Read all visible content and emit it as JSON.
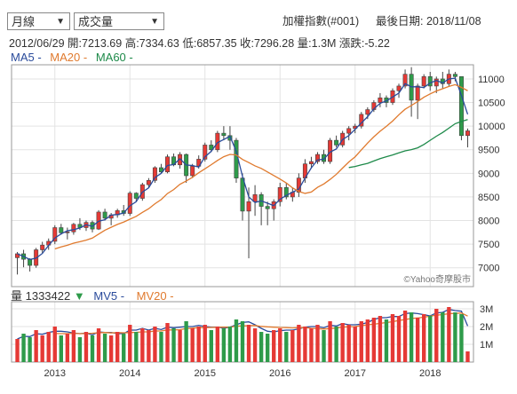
{
  "controls": {
    "period": "月線",
    "indicator": "成交量"
  },
  "header": {
    "index_name": "加權指數(#001)",
    "last_date_label": "最後日期: 2018/11/08",
    "date": "2012/06/29",
    "open": "開:7213.69",
    "high": "高:7334.63",
    "low": "低:6857.35",
    "close": "收:7296.28",
    "volume": "量:1.3M",
    "change": "漲跌:-5.22"
  },
  "ma_legend": [
    {
      "label": "MA5 -",
      "color": "#2a4b9b"
    },
    {
      "label": "MA20 -",
      "color": "#e07a2e"
    },
    {
      "label": "MA60 -",
      "color": "#1e8a4a"
    }
  ],
  "vol_legend": {
    "label": "量 1333422",
    "arrow": "▼",
    "mv5": "MV5 -",
    "mv20": "MV20 -"
  },
  "watermark": "©Yahoo奇摩股市",
  "colors": {
    "up": "#e53935",
    "down": "#2e9b4a",
    "ma5": "#2a4b9b",
    "ma20": "#e07a2e",
    "ma60": "#1e8a4a"
  },
  "chart_data": {
    "type": "candlestick",
    "price_axis": {
      "ticks": [
        7000,
        7500,
        8000,
        8500,
        9000,
        9500,
        10000,
        10500,
        11000
      ],
      "range": [
        6600,
        11300
      ]
    },
    "volume_axis": {
      "ticks": [
        "3M",
        "2M",
        "1M"
      ],
      "tick_values": [
        3,
        2,
        1
      ],
      "range": [
        0,
        3.4
      ]
    },
    "x_axis": {
      "labels": [
        "2013",
        "2014",
        "2015",
        "2016",
        "2017",
        "2018"
      ],
      "label_index": [
        6,
        18,
        30,
        42,
        54,
        66
      ]
    },
    "candles": [
      [
        7213,
        7334,
        6857,
        7296
      ],
      [
        7296,
        7380,
        7010,
        7180
      ],
      [
        7180,
        7200,
        6920,
        7050
      ],
      [
        7050,
        7420,
        7000,
        7380
      ],
      [
        7380,
        7550,
        7300,
        7480
      ],
      [
        7480,
        7620,
        7380,
        7560
      ],
      [
        7560,
        7900,
        7500,
        7850
      ],
      [
        7850,
        7930,
        7700,
        7740
      ],
      [
        7740,
        7850,
        7600,
        7760
      ],
      [
        7760,
        7950,
        7700,
        7920
      ],
      [
        7920,
        8050,
        7800,
        7850
      ],
      [
        7850,
        8000,
        7780,
        7960
      ],
      [
        7960,
        8000,
        7750,
        7820
      ],
      [
        7820,
        8220,
        7800,
        8180
      ],
      [
        8180,
        8250,
        8000,
        8050
      ],
      [
        8050,
        8160,
        7900,
        8120
      ],
      [
        8120,
        8250,
        8060,
        8210
      ],
      [
        8210,
        8330,
        8100,
        8150
      ],
      [
        8150,
        8620,
        8100,
        8580
      ],
      [
        8580,
        8600,
        8400,
        8470
      ],
      [
        8470,
        8800,
        8420,
        8760
      ],
      [
        8760,
        8900,
        8700,
        8850
      ],
      [
        8850,
        9150,
        8800,
        9120
      ],
      [
        9120,
        9200,
        9000,
        9030
      ],
      [
        9030,
        9400,
        9000,
        9350
      ],
      [
        9350,
        9420,
        9150,
        9180
      ],
      [
        9180,
        9450,
        9100,
        9400
      ],
      [
        9400,
        9420,
        8800,
        8950
      ],
      [
        8950,
        9200,
        8900,
        9150
      ],
      [
        9150,
        9380,
        9100,
        9300
      ],
      [
        9300,
        9650,
        9250,
        9600
      ],
      [
        9600,
        9700,
        9450,
        9500
      ],
      [
        9500,
        9900,
        9450,
        9850
      ],
      [
        9850,
        10000,
        9700,
        9800
      ],
      [
        9800,
        10000,
        9500,
        9700
      ],
      [
        9700,
        9750,
        8800,
        8900
      ],
      [
        8900,
        9000,
        8000,
        8200
      ],
      [
        8200,
        8700,
        7200,
        8400
      ],
      [
        8400,
        8750,
        8100,
        8550
      ],
      [
        8550,
        8600,
        7900,
        8300
      ],
      [
        8300,
        8400,
        7900,
        8250
      ],
      [
        8250,
        8450,
        8000,
        8400
      ],
      [
        8400,
        8800,
        8300,
        8700
      ],
      [
        8700,
        8800,
        8450,
        8500
      ],
      [
        8500,
        8700,
        8400,
        8600
      ],
      [
        8600,
        9000,
        8500,
        8900
      ],
      [
        8900,
        9300,
        8800,
        9200
      ],
      [
        9200,
        9350,
        9100,
        9250
      ],
      [
        9250,
        9450,
        9200,
        9400
      ],
      [
        9400,
        9500,
        9200,
        9250
      ],
      [
        9250,
        9750,
        9200,
        9700
      ],
      [
        9700,
        9800,
        9550,
        9600
      ],
      [
        9600,
        9900,
        9550,
        9850
      ],
      [
        9850,
        10000,
        9700,
        9950
      ],
      [
        9950,
        10050,
        9850,
        10000
      ],
      [
        10000,
        10300,
        9950,
        10250
      ],
      [
        10250,
        10400,
        10150,
        10350
      ],
      [
        10350,
        10550,
        10300,
        10500
      ],
      [
        10500,
        10700,
        10400,
        10600
      ],
      [
        10600,
        10650,
        10400,
        10500
      ],
      [
        10500,
        10800,
        10450,
        10750
      ],
      [
        10750,
        10900,
        10600,
        10850
      ],
      [
        10850,
        11200,
        10800,
        11100
      ],
      [
        11100,
        11250,
        10200,
        10550
      ],
      [
        10550,
        10900,
        10150,
        10850
      ],
      [
        10850,
        11100,
        10800,
        11050
      ],
      [
        11050,
        11150,
        10750,
        10850
      ],
      [
        10850,
        11050,
        10700,
        11000
      ],
      [
        11000,
        11150,
        10800,
        10900
      ],
      [
        10900,
        11200,
        10850,
        11100
      ],
      [
        11100,
        11150,
        10950,
        11050
      ],
      [
        11050,
        11050,
        9700,
        9800
      ],
      [
        9800,
        9950,
        9550,
        9900
      ]
    ],
    "ma20_start": 6,
    "ma60_start": 53,
    "volumes": [
      1.3,
      1.6,
      1.4,
      1.8,
      1.5,
      1.7,
      2.0,
      1.5,
      1.6,
      1.8,
      1.4,
      1.7,
      1.5,
      1.9,
      1.6,
      1.5,
      1.7,
      1.6,
      2.1,
      1.7,
      1.9,
      1.8,
      2.0,
      1.7,
      2.2,
      1.9,
      1.8,
      2.3,
      1.9,
      2.0,
      2.1,
      1.8,
      2.0,
      1.9,
      2.0,
      2.4,
      2.3,
      2.1,
      1.9,
      1.7,
      1.6,
      1.8,
      1.9,
      1.7,
      1.8,
      2.1,
      2.0,
      1.9,
      2.1,
      1.8,
      2.3,
      2.0,
      2.2,
      2.1,
      2.0,
      2.3,
      2.4,
      2.5,
      2.6,
      2.4,
      2.7,
      2.6,
      2.9,
      2.8,
      2.5,
      2.7,
      2.6,
      3.0,
      2.8,
      3.1,
      2.8,
      2.7,
      0.6
    ]
  }
}
